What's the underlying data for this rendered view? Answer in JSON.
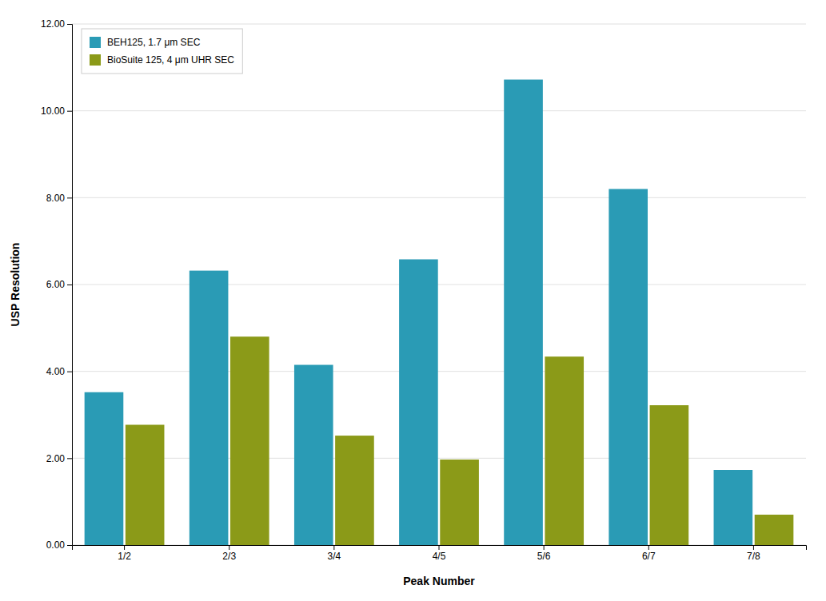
{
  "chart_data": {
    "type": "bar",
    "xlabel": "Peak Number",
    "ylabel": "USP Resolution",
    "categories": [
      "1/2",
      "2/3",
      "3/4",
      "4/5",
      "5/6",
      "6/7",
      "7/8"
    ],
    "series": [
      {
        "name": "BEH125, 1.7 μm SEC",
        "color": "#2A9BB5",
        "values": [
          3.52,
          6.32,
          4.15,
          6.58,
          10.72,
          8.2,
          1.73
        ]
      },
      {
        "name": "BioSuite 125, 4 μm UHR SEC",
        "color": "#8B9A18",
        "values": [
          2.77,
          4.8,
          2.52,
          1.97,
          4.34,
          3.22,
          0.7
        ]
      }
    ],
    "ylim": [
      0,
      12.0
    ],
    "yticks": [
      {
        "value": 0.0,
        "label": "0.00"
      },
      {
        "value": 2.0,
        "label": "2.00"
      },
      {
        "value": 4.0,
        "label": "4.00"
      },
      {
        "value": 6.0,
        "label": "6.00"
      },
      {
        "value": 8.0,
        "label": "8.00"
      },
      {
        "value": 10.0,
        "label": "10.00"
      },
      {
        "value": 12.0,
        "label": "12.00"
      }
    ],
    "grid": true,
    "legend": "top-left"
  }
}
